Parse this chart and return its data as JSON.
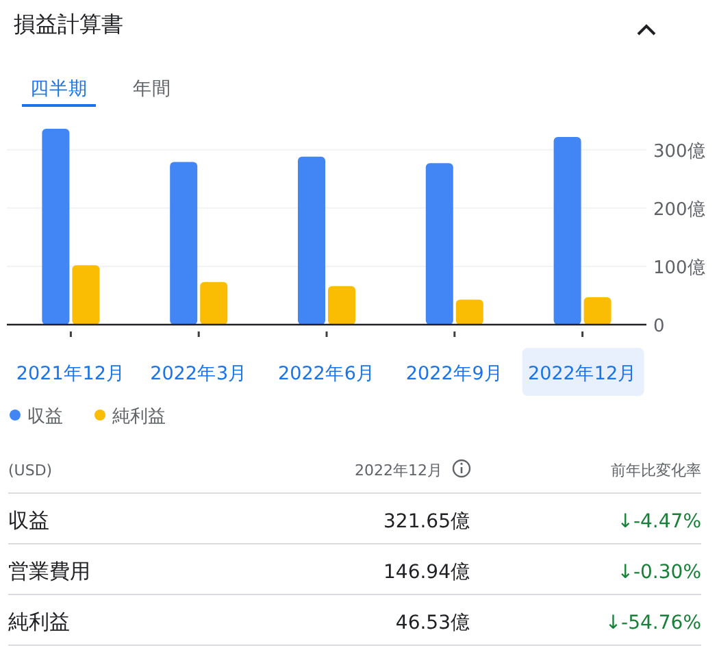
{
  "chart_data": {
    "type": "bar",
    "title": "損益計算書",
    "categories": [
      "2021年12月",
      "2022年3月",
      "2022年6月",
      "2022年9月",
      "2022年12月"
    ],
    "series": [
      {
        "name": "収益",
        "color": "#4285f4",
        "values": [
          336,
          279,
          288,
          277,
          322
        ]
      },
      {
        "name": "純利益",
        "color": "#fbbc04",
        "values": [
          102,
          73,
          66,
          43,
          47
        ]
      }
    ],
    "yticks": [
      {
        "value": 0,
        "label": "0"
      },
      {
        "value": 100,
        "label": "100億"
      },
      {
        "value": 200,
        "label": "200億"
      },
      {
        "value": 300,
        "label": "300億"
      }
    ],
    "ylim": [
      0,
      336
    ],
    "grid": "y",
    "legend": "bottom",
    "annotations": [
      "四半期",
      "年間",
      "(USD)",
      "2022年12月",
      "前年比変化率",
      "収益",
      "321.65億",
      "↓-4.47%",
      "営業費用",
      "146.94億",
      "↓-0.30%",
      "純利益",
      "46.53億",
      "↓-54.76%"
    ]
  }
}
